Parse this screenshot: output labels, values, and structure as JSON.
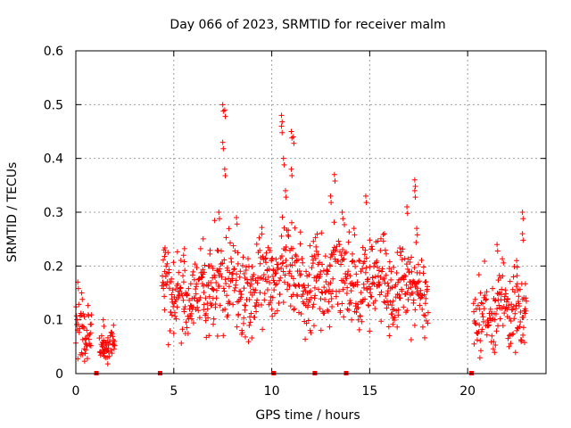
{
  "chart_data": {
    "type": "scatter",
    "title": "Day 066 of 2023, SRMTID for receiver malm",
    "xlabel": "GPS time / hours",
    "ylabel": "SRMTID / TECUs",
    "xlim": [
      0,
      24
    ],
    "ylim": [
      0,
      0.6
    ],
    "xticks": [
      0,
      5,
      10,
      15,
      20
    ],
    "xtick_labels": [
      "0",
      "5",
      "10",
      "15",
      "20"
    ],
    "yticks": [
      0,
      0.1,
      0.2,
      0.3,
      0.4,
      0.5,
      0.6
    ],
    "ytick_labels": [
      "0",
      "0.1",
      "0.2",
      "0.3",
      "0.4",
      "0.5",
      "0.6"
    ],
    "grid": true,
    "marker": "+",
    "color": "#ff0000",
    "gap_markers_x": [
      1.05,
      4.3,
      10.1,
      12.2,
      13.8,
      20.2
    ],
    "series": [
      {
        "name": "SRMTID",
        "segments": [
          {
            "start": 0.0,
            "end": 0.8,
            "mean": 0.09,
            "spread": 0.03,
            "peaks": [
              [
                0.1,
                0.17
              ],
              [
                0.3,
                0.15
              ]
            ]
          },
          {
            "start": 1.2,
            "end": 2.0,
            "mean": 0.06,
            "spread": 0.015,
            "peaks": [
              [
                1.4,
                0.1
              ],
              [
                1.6,
                0.03
              ]
            ]
          },
          {
            "start": 4.4,
            "end": 6.5,
            "mean": 0.15,
            "spread": 0.035,
            "peaks": [
              [
                4.5,
                0.23
              ],
              [
                5.5,
                0.22
              ]
            ]
          },
          {
            "start": 6.5,
            "end": 9.5,
            "mean": 0.17,
            "spread": 0.045,
            "peaks": [
              [
                7.5,
                0.5
              ],
              [
                7.6,
                0.49
              ],
              [
                7.5,
                0.43
              ],
              [
                7.6,
                0.38
              ],
              [
                7.3,
                0.3
              ],
              [
                8.2,
                0.29
              ]
            ]
          },
          {
            "start": 9.5,
            "end": 12.5,
            "mean": 0.18,
            "spread": 0.045,
            "peaks": [
              [
                10.5,
                0.48
              ],
              [
                10.5,
                0.46
              ],
              [
                11.0,
                0.45
              ],
              [
                11.1,
                0.44
              ],
              [
                10.6,
                0.4
              ],
              [
                11.0,
                0.38
              ],
              [
                10.7,
                0.34
              ]
            ]
          },
          {
            "start": 12.5,
            "end": 16.0,
            "mean": 0.17,
            "spread": 0.045,
            "peaks": [
              [
                13.2,
                0.37
              ],
              [
                13.0,
                0.33
              ],
              [
                14.8,
                0.33
              ],
              [
                13.6,
                0.3
              ],
              [
                14.2,
                0.27
              ]
            ]
          },
          {
            "start": 16.0,
            "end": 18.0,
            "mean": 0.16,
            "spread": 0.04,
            "peaks": [
              [
                17.3,
                0.36
              ],
              [
                17.3,
                0.34
              ],
              [
                16.9,
                0.31
              ],
              [
                17.4,
                0.27
              ]
            ]
          },
          {
            "start": 20.3,
            "end": 23.0,
            "mean": 0.12,
            "spread": 0.04,
            "peaks": [
              [
                21.5,
                0.24
              ],
              [
                22.8,
                0.3
              ],
              [
                22.8,
                0.26
              ],
              [
                22.5,
                0.21
              ]
            ]
          }
        ]
      }
    ]
  }
}
